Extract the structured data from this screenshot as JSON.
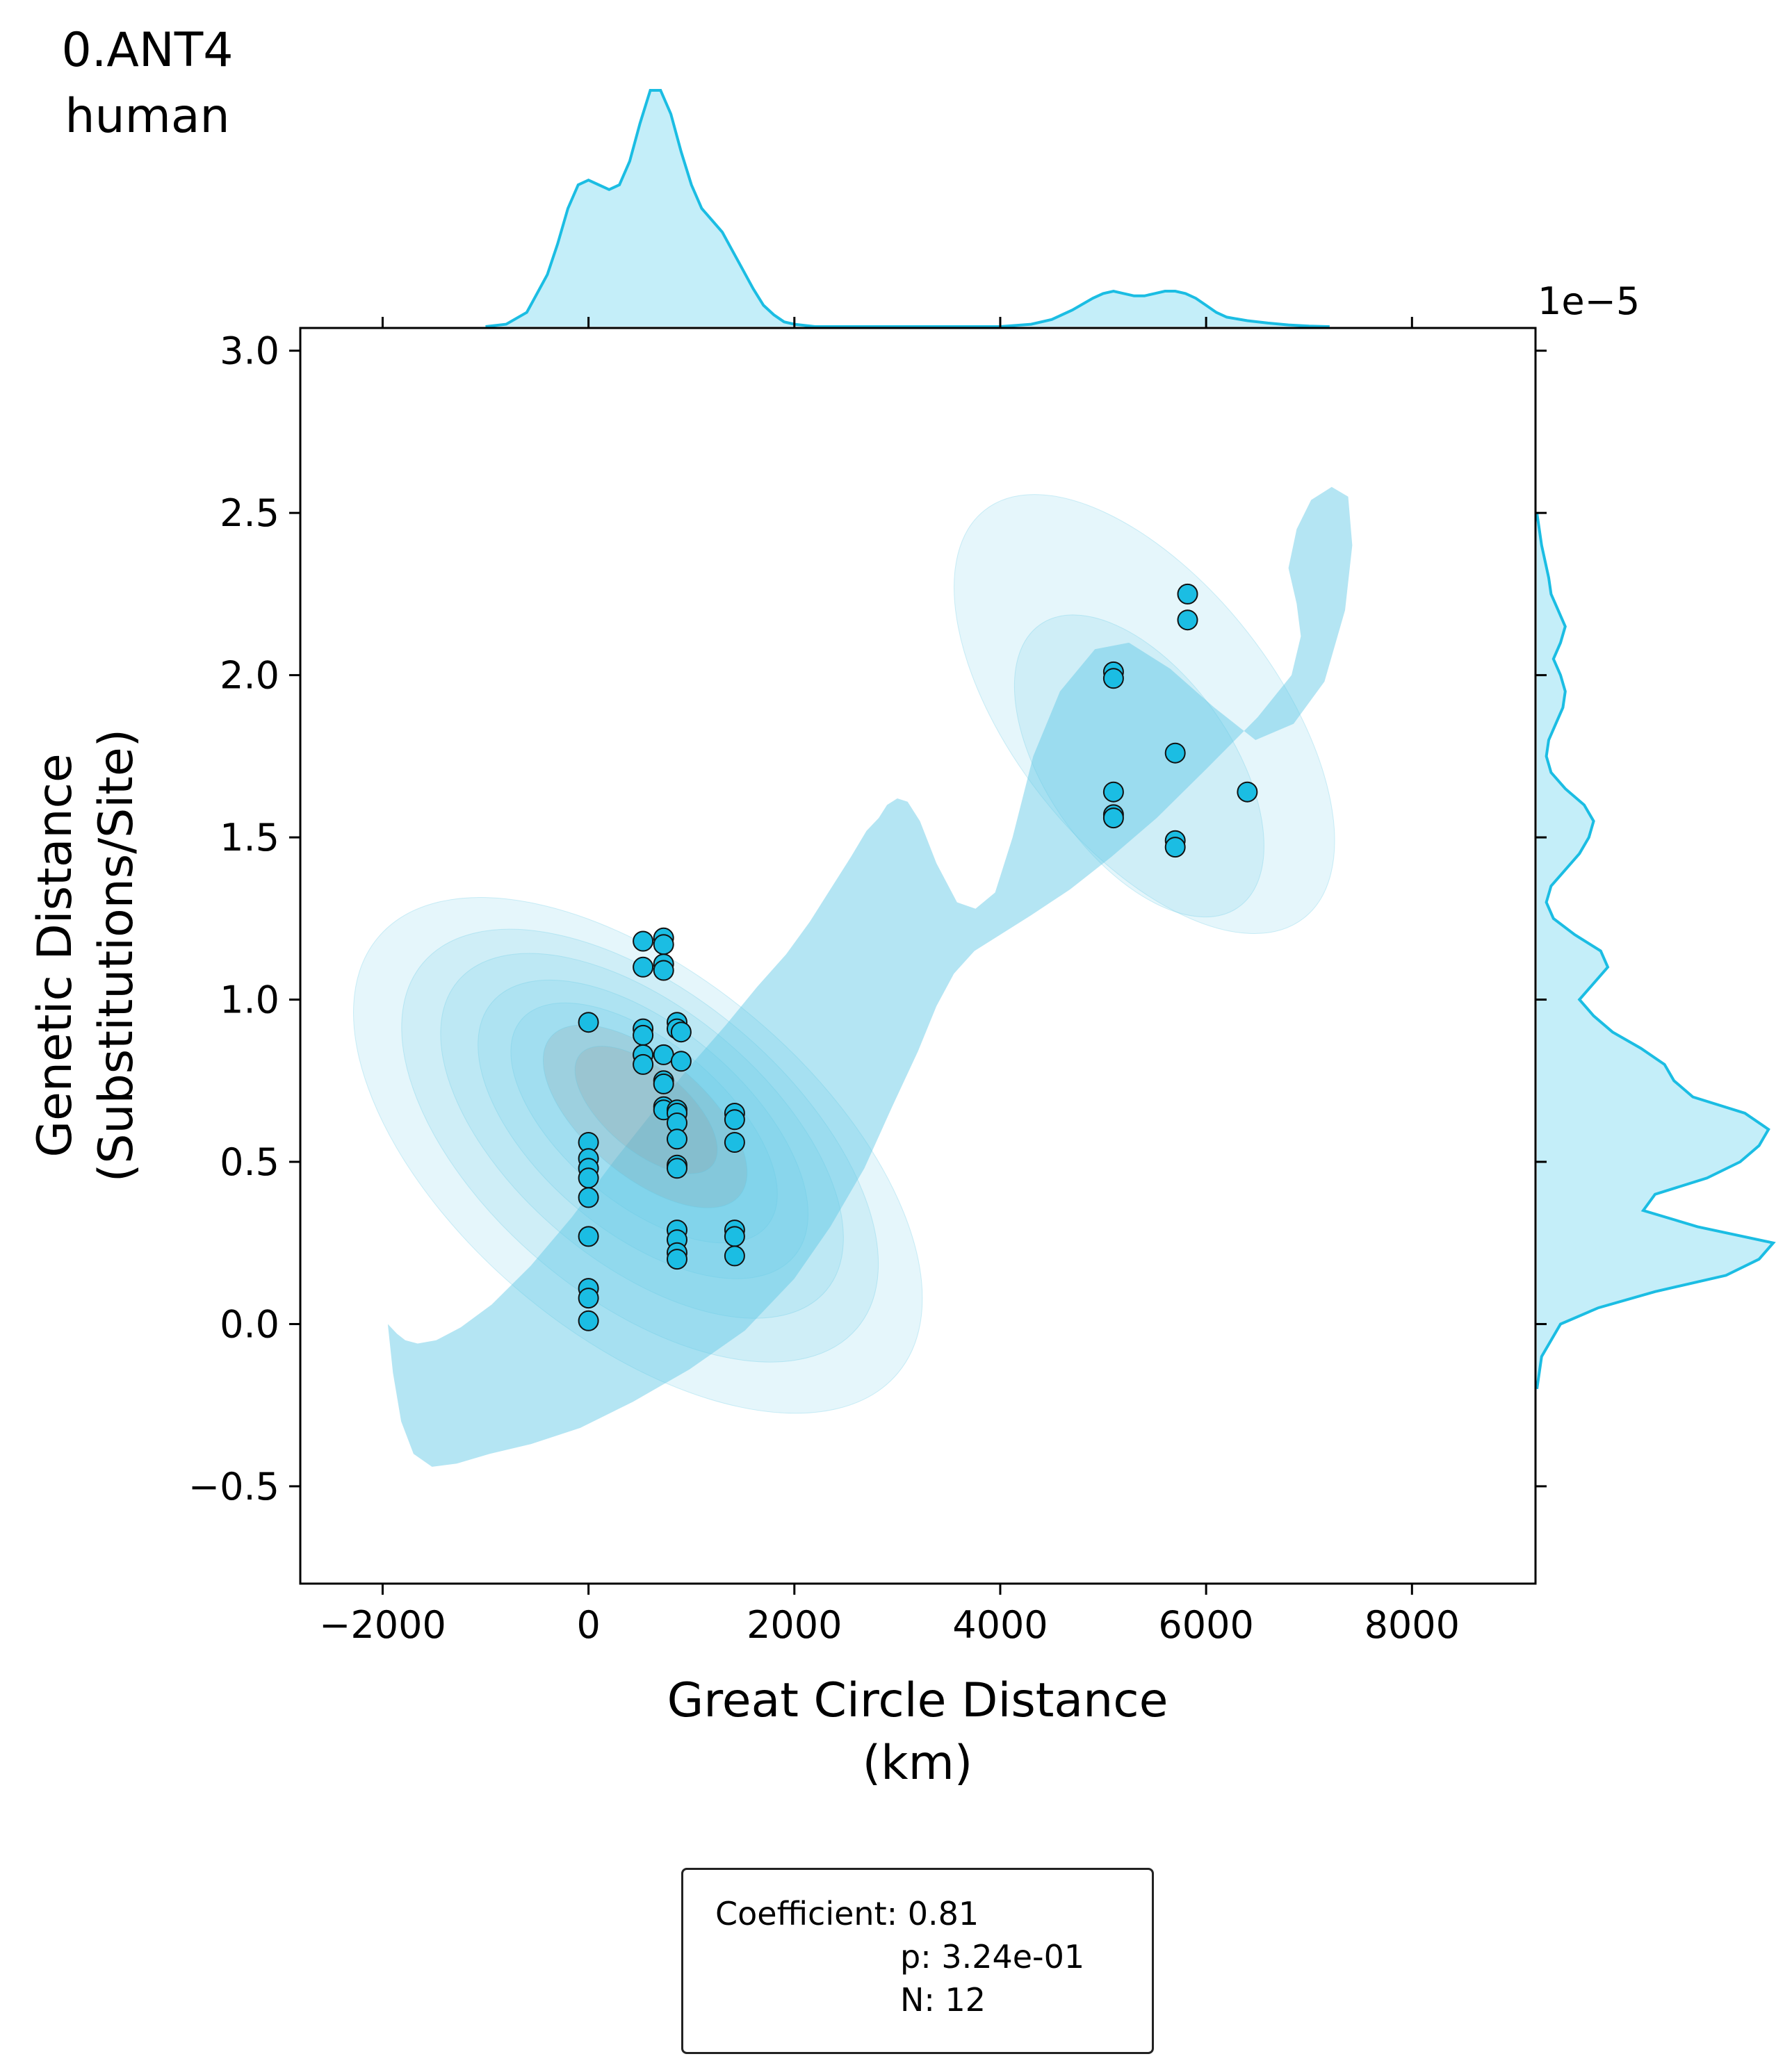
{
  "panel_title": {
    "line1": "0.ANT4",
    "line2": "human"
  },
  "stats": {
    "coefficient": "Coefficient: 0.81",
    "p": "p: 3.24e-01",
    "n": "N: 12"
  },
  "colors": {
    "accent": "#1bbde3",
    "fill": "#c4eef9",
    "kde": "#63c9e6",
    "kde_dark": "#8c8c8c"
  },
  "chart_data": {
    "type": "scatter",
    "title": "",
    "xlabel": [
      "Great Circle Distance",
      "(km)"
    ],
    "ylabel": [
      "Genetic Distance",
      "(Substitutions/Site)"
    ],
    "y_offset_label": "1e−5",
    "xlim": [
      -2800,
      9200
    ],
    "ylim": [
      -0.8,
      3.07
    ],
    "x_ticks": [
      -2000,
      0,
      2000,
      4000,
      6000,
      8000
    ],
    "x_tick_labels": [
      "−2000",
      "0",
      "2000",
      "4000",
      "6000",
      "8000"
    ],
    "y_ticks": [
      -0.5,
      0.0,
      0.5,
      1.0,
      1.5,
      2.0,
      2.5,
      3.0
    ],
    "y_tick_labels": [
      "−0.5",
      "0.0",
      "0.5",
      "1.0",
      "1.5",
      "2.0",
      "2.5",
      "3.0"
    ],
    "grid": false,
    "marginals": "kde",
    "points": [
      [
        0,
        0.93
      ],
      [
        0,
        0.56
      ],
      [
        0,
        0.51
      ],
      [
        0,
        0.48
      ],
      [
        0,
        0.45
      ],
      [
        0,
        0.39
      ],
      [
        0,
        0.27
      ],
      [
        0,
        0.11
      ],
      [
        0,
        0.08
      ],
      [
        0,
        0.01
      ],
      [
        530,
        1.18
      ],
      [
        530,
        1.1
      ],
      [
        530,
        0.91
      ],
      [
        530,
        0.89
      ],
      [
        530,
        0.83
      ],
      [
        530,
        0.8
      ],
      [
        730,
        1.19
      ],
      [
        730,
        1.17
      ],
      [
        730,
        1.11
      ],
      [
        730,
        1.09
      ],
      [
        730,
        0.83
      ],
      [
        730,
        0.75
      ],
      [
        730,
        0.74
      ],
      [
        730,
        0.67
      ],
      [
        730,
        0.66
      ],
      [
        860,
        0.93
      ],
      [
        860,
        0.91
      ],
      [
        860,
        0.66
      ],
      [
        860,
        0.65
      ],
      [
        860,
        0.62
      ],
      [
        860,
        0.57
      ],
      [
        860,
        0.49
      ],
      [
        860,
        0.48
      ],
      [
        860,
        0.29
      ],
      [
        860,
        0.26
      ],
      [
        860,
        0.22
      ],
      [
        860,
        0.2
      ],
      [
        900,
        0.9
      ],
      [
        900,
        0.81
      ],
      [
        1420,
        0.65
      ],
      [
        1420,
        0.63
      ],
      [
        1420,
        0.56
      ],
      [
        1420,
        0.29
      ],
      [
        1420,
        0.27
      ],
      [
        1420,
        0.21
      ],
      [
        5100,
        2.01
      ],
      [
        5100,
        1.99
      ],
      [
        5100,
        1.64
      ],
      [
        5100,
        1.57
      ],
      [
        5100,
        1.56
      ],
      [
        5700,
        1.76
      ],
      [
        5700,
        1.49
      ],
      [
        5700,
        1.47
      ],
      [
        5820,
        2.25
      ],
      [
        5820,
        2.17
      ],
      [
        6400,
        1.64
      ]
    ],
    "kde_levels": [
      {
        "x": [
          -1950,
          -1900,
          -1820,
          -1700,
          -1520,
          -1280,
          -960,
          -560,
          -80,
          430,
          980,
          1520,
          2000,
          2350,
          2680,
          2950,
          3200,
          3380,
          3550,
          3750,
          4000,
          4300,
          4680,
          5080,
          5520,
          6000,
          6500,
          6830,
          6920,
          6880,
          6800,
          6880,
          7020,
          7220,
          7380,
          7420,
          7350,
          7150,
          6850,
          6480,
          6080,
          5650,
          5250,
          4920,
          4580,
          4320,
          4120,
          3950,
          3760,
          3580,
          3380,
          3220,
          3100,
          3000,
          2900,
          2820,
          2700,
          2550,
          2350,
          2150,
          1920,
          1640,
          1330,
          1000,
          640,
          240,
          -160,
          -560,
          -940,
          -1240,
          -1480,
          -1660,
          -1780,
          -1860,
          -1920
        ],
        "y": [
          0.0,
          -0.15,
          -0.3,
          -0.4,
          -0.44,
          -0.43,
          -0.4,
          -0.37,
          -0.32,
          -0.24,
          -0.14,
          -0.02,
          0.14,
          0.3,
          0.48,
          0.67,
          0.84,
          0.98,
          1.08,
          1.15,
          1.2,
          1.26,
          1.34,
          1.44,
          1.56,
          1.71,
          1.87,
          2.0,
          2.12,
          2.22,
          2.33,
          2.45,
          2.54,
          2.58,
          2.55,
          2.4,
          2.2,
          1.98,
          1.85,
          1.8,
          1.9,
          2.02,
          2.1,
          2.08,
          1.95,
          1.75,
          1.5,
          1.33,
          1.28,
          1.3,
          1.42,
          1.55,
          1.61,
          1.62,
          1.6,
          1.56,
          1.52,
          1.44,
          1.34,
          1.24,
          1.14,
          1.04,
          0.92,
          0.8,
          0.66,
          0.5,
          0.33,
          0.18,
          0.06,
          -0.01,
          -0.05,
          -0.06,
          -0.05,
          -0.03,
          -0.01
        ]
      },
      {
        "cx": 5400,
        "cy": 1.88,
        "rx": 1280,
        "ry": 0.42,
        "rot": -38
      },
      {
        "cx": 5350,
        "cy": 1.72,
        "rx": 900,
        "ry": 0.28,
        "rot": -35
      },
      {
        "cx": 480,
        "cy": 0.52,
        "rx": 1750,
        "ry": 0.55,
        "rot": -50
      },
      {
        "cx": 500,
        "cy": 0.55,
        "rx": 1480,
        "ry": 0.46,
        "rot": -50
      },
      {
        "cx": 520,
        "cy": 0.58,
        "rx": 1230,
        "ry": 0.39,
        "rot": -50
      },
      {
        "cx": 530,
        "cy": 0.6,
        "rx": 1000,
        "ry": 0.32,
        "rot": -50
      },
      {
        "cx": 540,
        "cy": 0.62,
        "rx": 780,
        "ry": 0.26,
        "rot": -50
      },
      {
        "cx": 550,
        "cy": 0.64,
        "rx": 580,
        "ry": 0.2,
        "rot": -50
      },
      {
        "cx": 560,
        "cy": 0.66,
        "rx": 400,
        "ry": 0.14,
        "rot": -50
      }
    ],
    "x_marginal": {
      "x": [
        -1000,
        -800,
        -600,
        -400,
        -300,
        -200,
        -100,
        0,
        100,
        200,
        300,
        400,
        500,
        600,
        700,
        800,
        900,
        1000,
        1100,
        1200,
        1300,
        1400,
        1500,
        1600,
        1700,
        1800,
        1900,
        2000,
        2200,
        2500,
        3000,
        3500,
        4000,
        4300,
        4500,
        4700,
        4900,
        5000,
        5100,
        5200,
        5300,
        5400,
        5500,
        5600,
        5700,
        5800,
        5900,
        6000,
        6100,
        6200,
        6400,
        6600,
        6800,
        7000,
        7200
      ],
      "density": [
        0,
        0.01,
        0.06,
        0.22,
        0.35,
        0.5,
        0.6,
        0.62,
        0.6,
        0.58,
        0.6,
        0.7,
        0.86,
        1.0,
        1.0,
        0.9,
        0.74,
        0.6,
        0.5,
        0.45,
        0.4,
        0.32,
        0.24,
        0.16,
        0.09,
        0.05,
        0.02,
        0.01,
        0,
        0,
        0,
        0,
        0,
        0.01,
        0.03,
        0.07,
        0.12,
        0.14,
        0.15,
        0.14,
        0.13,
        0.13,
        0.14,
        0.15,
        0.15,
        0.14,
        0.12,
        0.09,
        0.06,
        0.04,
        0.025,
        0.015,
        0.007,
        0.002,
        0
      ]
    },
    "y_marginal": {
      "y": [
        -0.2,
        -0.1,
        0.0,
        0.05,
        0.1,
        0.15,
        0.2,
        0.25,
        0.3,
        0.35,
        0.4,
        0.45,
        0.5,
        0.55,
        0.6,
        0.65,
        0.7,
        0.75,
        0.8,
        0.85,
        0.9,
        0.95,
        1.0,
        1.05,
        1.1,
        1.15,
        1.2,
        1.25,
        1.3,
        1.35,
        1.4,
        1.45,
        1.5,
        1.55,
        1.6,
        1.65,
        1.7,
        1.75,
        1.8,
        1.85,
        1.9,
        1.95,
        2.0,
        2.05,
        2.1,
        2.15,
        2.2,
        2.25,
        2.3,
        2.4,
        2.5
      ],
      "density": [
        0,
        0.02,
        0.1,
        0.26,
        0.5,
        0.8,
        0.94,
        1.0,
        0.68,
        0.45,
        0.5,
        0.72,
        0.86,
        0.94,
        0.98,
        0.88,
        0.66,
        0.58,
        0.54,
        0.44,
        0.32,
        0.24,
        0.18,
        0.24,
        0.3,
        0.27,
        0.16,
        0.07,
        0.04,
        0.06,
        0.12,
        0.18,
        0.22,
        0.24,
        0.2,
        0.12,
        0.06,
        0.04,
        0.05,
        0.08,
        0.11,
        0.12,
        0.1,
        0.07,
        0.1,
        0.12,
        0.09,
        0.06,
        0.05,
        0.02,
        0
      ]
    }
  }
}
